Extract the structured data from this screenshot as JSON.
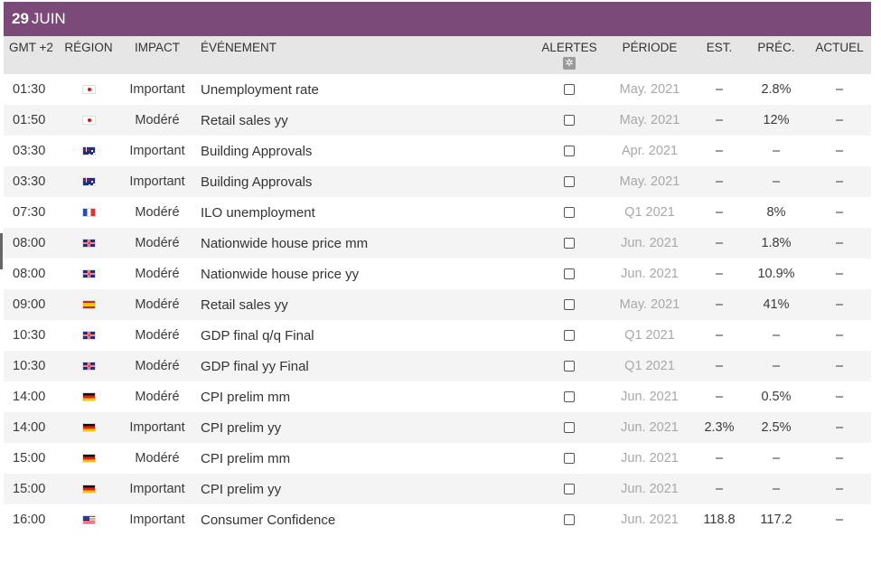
{
  "date": {
    "day": "29",
    "month": "JUIN"
  },
  "headers": {
    "time": "GMT +2",
    "region": "RÉGION",
    "impact": "IMPACT",
    "event": "ÉVÉNEMENT",
    "alerts": "ALERTES",
    "period": "PÉRIODE",
    "est": "EST.",
    "prev": "PRÉC.",
    "actual": "ACTUEL"
  },
  "icons": {
    "settings": "gear-icon",
    "alert_toggle": "checkbox"
  },
  "colors": {
    "date_bar": "#7c4a78",
    "header_bg": "#e6e6e6",
    "period_text": "#a8a8a8"
  },
  "rows": [
    {
      "time": "01:30",
      "flag": "jp",
      "impact": "Important",
      "event": "Unemployment rate",
      "period": "May. 2021",
      "est": "–",
      "prev": "2.8%",
      "actual": "–"
    },
    {
      "time": "01:50",
      "flag": "jp",
      "impact": "Modéré",
      "event": "Retail sales yy",
      "period": "May. 2021",
      "est": "–",
      "prev": "12%",
      "actual": "–"
    },
    {
      "time": "03:30",
      "flag": "au",
      "impact": "Important",
      "event": "Building Approvals",
      "period": "Apr. 2021",
      "est": "–",
      "prev": "–",
      "actual": "–"
    },
    {
      "time": "03:30",
      "flag": "au",
      "impact": "Important",
      "event": "Building Approvals",
      "period": "May. 2021",
      "est": "–",
      "prev": "–",
      "actual": "–"
    },
    {
      "time": "07:30",
      "flag": "fr",
      "impact": "Modéré",
      "event": "ILO unemployment",
      "period": "Q1 2021",
      "est": "–",
      "prev": "8%",
      "actual": "–"
    },
    {
      "time": "08:00",
      "flag": "gb",
      "impact": "Modéré",
      "event": "Nationwide house price mm",
      "period": "Jun. 2021",
      "est": "–",
      "prev": "1.8%",
      "actual": "–"
    },
    {
      "time": "08:00",
      "flag": "gb",
      "impact": "Modéré",
      "event": "Nationwide house price yy",
      "period": "Jun. 2021",
      "est": "–",
      "prev": "10.9%",
      "actual": "–"
    },
    {
      "time": "09:00",
      "flag": "es",
      "impact": "Modéré",
      "event": "Retail sales yy",
      "period": "May. 2021",
      "est": "–",
      "prev": "41%",
      "actual": "–"
    },
    {
      "time": "10:30",
      "flag": "gb",
      "impact": "Modéré",
      "event": "GDP final q/q Final",
      "period": "Q1 2021",
      "est": "–",
      "prev": "–",
      "actual": "–"
    },
    {
      "time": "10:30",
      "flag": "gb",
      "impact": "Modéré",
      "event": "GDP final yy Final",
      "period": "Q1 2021",
      "est": "–",
      "prev": "–",
      "actual": "–"
    },
    {
      "time": "14:00",
      "flag": "de",
      "impact": "Modéré",
      "event": "CPI prelim mm",
      "period": "Jun. 2021",
      "est": "–",
      "prev": "0.5%",
      "actual": "–"
    },
    {
      "time": "14:00",
      "flag": "de",
      "impact": "Important",
      "event": "CPI prelim yy",
      "period": "Jun. 2021",
      "est": "2.3%",
      "prev": "2.5%",
      "actual": "–"
    },
    {
      "time": "15:00",
      "flag": "de",
      "impact": "Modéré",
      "event": "CPI prelim mm",
      "period": "Jun. 2021",
      "est": "–",
      "prev": "–",
      "actual": "–"
    },
    {
      "time": "15:00",
      "flag": "de",
      "impact": "Important",
      "event": "CPI prelim yy",
      "period": "Jun. 2021",
      "est": "–",
      "prev": "–",
      "actual": "–"
    },
    {
      "time": "16:00",
      "flag": "us",
      "impact": "Important",
      "event": "Consumer Confidence",
      "period": "Jun. 2021",
      "est": "118.8",
      "prev": "117.2",
      "actual": "–"
    }
  ]
}
